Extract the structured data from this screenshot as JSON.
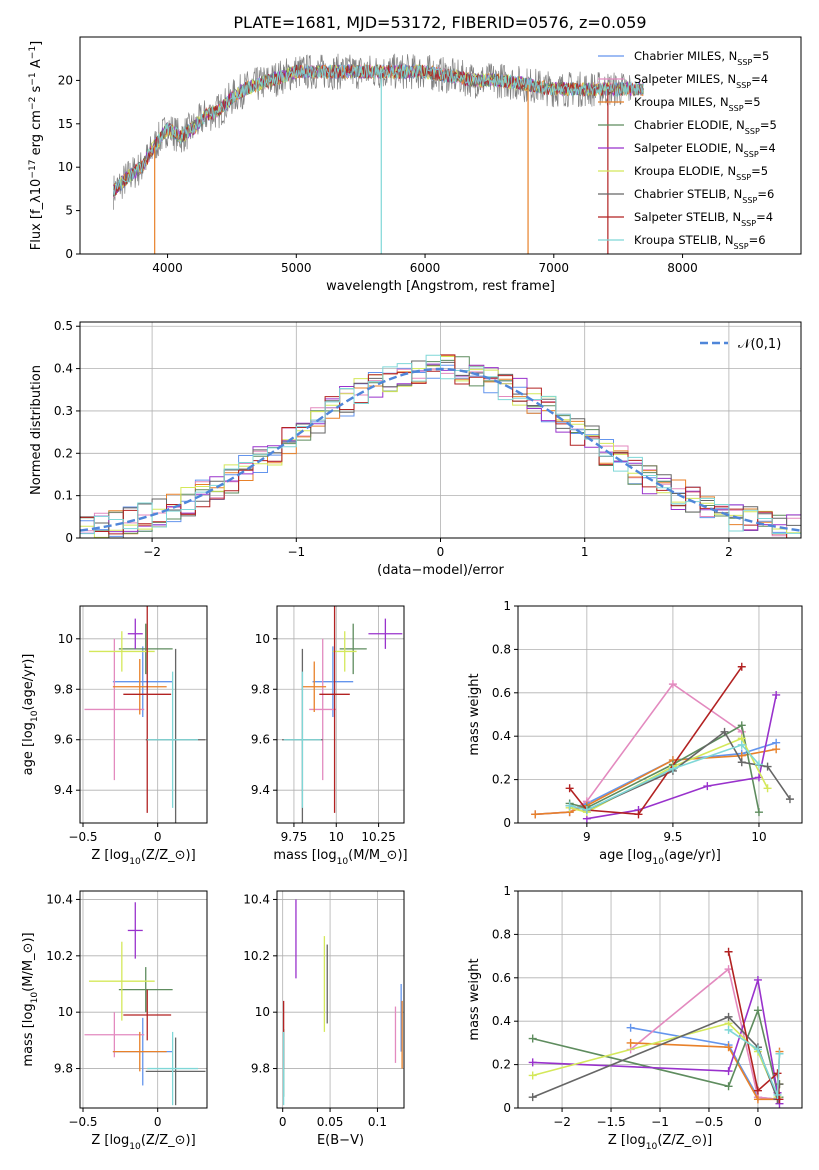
{
  "figure_title": "PLATE=1681, MJD=53172, FIBERID=0576, z=0.059",
  "series_names": [
    "Chabrier MILES, N$_{SSP}$=5",
    "Salpeter MILES, N$_{SSP}$=4",
    "Kroupa MILES, N$_{SSP}$=5",
    "Chabrier ELODIE, N$_{SSP}$=5",
    "Salpeter ELODIE, N$_{SSP}$=4",
    "Kroupa ELODIE, N$_{SSP}$=5",
    "Chabrier STELIB, N$_{SSP}$=6",
    "Salpeter STELIB, N$_{SSP}$=4",
    "Kroupa STELIB, N$_{SSP}$=6"
  ],
  "series_colors": [
    "#6495ED",
    "#E38ABF",
    "#E8812A",
    "#5E8C5E",
    "#9932CC",
    "#D4E85A",
    "#666666",
    "#B22222",
    "#7FD7D7"
  ],
  "chart_data": [
    {
      "type": "line",
      "panel": "spectrum",
      "xlabel": "wavelength [Angstrom, rest frame]",
      "ylabel": "Flux [f$_\\lambda$10$^{-17}$ erg cm$^{-2}$ s$^{-1}$ A$^{-1}$]",
      "xlim": [
        3320,
        8920
      ],
      "ylim": [
        0,
        25
      ],
      "xticks": [
        4000,
        5000,
        6000,
        7000,
        8000
      ],
      "yticks": [
        0,
        5,
        10,
        15,
        20
      ],
      "legend": "top-right",
      "spectrum_x": [
        3600,
        3700,
        3800,
        3900,
        4000,
        4100,
        4200,
        4300,
        4400,
        4500,
        4600,
        4700,
        4800,
        4900,
        5000,
        5200,
        5400,
        5600,
        5800,
        6000,
        6200,
        6400,
        6600,
        6800,
        7000,
        7200,
        7400,
        7600
      ],
      "spectrum_y": [
        7.5,
        9,
        10,
        12.5,
        14.5,
        13.5,
        14.5,
        16,
        16.5,
        18,
        19,
        19.5,
        20,
        20.5,
        21,
        21,
        21,
        21,
        21,
        21,
        20.5,
        20,
        20,
        19.5,
        19,
        19,
        19,
        19
      ]
    },
    {
      "type": "line",
      "panel": "residuals",
      "xlabel": "(data-model)/error",
      "ylabel": "Normed distribution",
      "xlim": [
        -2.5,
        2.5
      ],
      "ylim": [
        0,
        0.51
      ],
      "xticks": [
        -2,
        -1,
        0,
        1,
        2
      ],
      "yticks": [
        0.0,
        0.1,
        0.2,
        0.3,
        0.4,
        0.5
      ],
      "grid": true,
      "legend": "top-right",
      "legend_label": "$\\mathcal{N}(0,1)$"
    },
    {
      "type": "scatter",
      "panel": "age-vs-Z",
      "xlabel": "Z [log$_{10}$($Z/Z_\\odot$)]",
      "ylabel": "age  [log$_{10}$($age/yr$)]",
      "xlim": [
        -0.52,
        0.33
      ],
      "ylim": [
        9.27,
        10.13
      ],
      "xticks": [
        -0.5,
        0.0
      ],
      "yticks": [
        9.4,
        9.6,
        9.8,
        10.0
      ],
      "grid": true,
      "points": [
        {
          "x": -0.1,
          "y": 9.83,
          "xerr": 0.2,
          "yerr": 0.14
        },
        {
          "x": -0.29,
          "y": 9.72,
          "xerr": 0.2,
          "yerr": 0.28
        },
        {
          "x": -0.12,
          "y": 9.81,
          "xerr": 0.18,
          "yerr": 0.11
        },
        {
          "x": -0.08,
          "y": 9.96,
          "xerr": 0.18,
          "yerr": 0.1
        },
        {
          "x": -0.15,
          "y": 10.02,
          "xerr": 0.05,
          "yerr": 0.06
        },
        {
          "x": -0.24,
          "y": 9.95,
          "xerr": 0.22,
          "yerr": 0.08
        },
        {
          "x": 0.12,
          "y": 9.6,
          "xerr": 0.2,
          "yerr": 0.36
        },
        {
          "x": -0.07,
          "y": 9.78,
          "xerr": 0.16,
          "yerr": 0.47
        },
        {
          "x": 0.1,
          "y": 9.6,
          "xerr": 0.17,
          "yerr": 0.27
        }
      ]
    },
    {
      "type": "scatter",
      "panel": "age-vs-mass",
      "xlabel": "mass [log$_{10}$($M/M_\\odot$)]",
      "ylabel": "",
      "xlim": [
        9.65,
        10.4
      ],
      "ylim": [
        9.27,
        10.13
      ],
      "xticks": [
        9.75,
        10.0,
        10.25
      ],
      "yticks": [
        9.4,
        9.6,
        9.8,
        10.0
      ],
      "grid": true,
      "points": [
        {
          "x": 9.98,
          "y": 9.83,
          "xerr": 0.12,
          "yerr": 0.14
        },
        {
          "x": 9.92,
          "y": 9.72,
          "xerr": 0.08,
          "yerr": 0.28
        },
        {
          "x": 9.87,
          "y": 9.81,
          "xerr": 0.07,
          "yerr": 0.1
        },
        {
          "x": 10.1,
          "y": 9.96,
          "xerr": 0.08,
          "yerr": 0.1
        },
        {
          "x": 10.29,
          "y": 10.02,
          "xerr": 0.1,
          "yerr": 0.06
        },
        {
          "x": 10.05,
          "y": 9.95,
          "xerr": 0.07,
          "yerr": 0.08
        },
        {
          "x": 9.8,
          "y": 9.6,
          "xerr": 0.12,
          "yerr": 0.36
        },
        {
          "x": 9.99,
          "y": 9.78,
          "xerr": 0.09,
          "yerr": 0.47
        },
        {
          "x": 9.8,
          "y": 9.6,
          "xerr": 0.11,
          "yerr": 0.27
        }
      ]
    },
    {
      "type": "line",
      "panel": "mass-weight-vs-age",
      "xlabel": "age  [log$_{10}$($age/yr$)]",
      "ylabel": "mass weight",
      "xlim": [
        8.6,
        10.25
      ],
      "ylim": [
        0,
        1.0
      ],
      "xticks": [
        9.0,
        9.5,
        10.0
      ],
      "yticks": [
        0.0,
        0.2,
        0.4,
        0.6,
        0.8,
        1.0
      ],
      "grid": true,
      "series": [
        {
          "x": [
            8.7,
            8.9,
            9.0,
            9.5,
            9.9,
            10.1
          ],
          "values": [
            0.04,
            0.05,
            0.09,
            0.29,
            0.32,
            0.37
          ]
        },
        {
          "x": [
            8.7,
            8.9,
            9.0,
            9.5,
            9.9
          ],
          "values": [
            0.04,
            0.05,
            0.1,
            0.64,
            0.42
          ]
        },
        {
          "x": [
            8.7,
            8.9,
            9.0,
            9.5,
            9.9,
            10.1
          ],
          "values": [
            0.04,
            0.05,
            0.08,
            0.29,
            0.31,
            0.34
          ]
        },
        {
          "x": [
            8.9,
            9.0,
            9.5,
            9.9,
            10.0
          ],
          "values": [
            0.09,
            0.07,
            0.27,
            0.45,
            0.05
          ]
        },
        {
          "x": [
            9.0,
            9.3,
            9.7,
            10.0,
            10.1
          ],
          "values": [
            0.02,
            0.06,
            0.17,
            0.21,
            0.59
          ]
        },
        {
          "x": [
            8.9,
            9.0,
            9.5,
            9.9,
            10.05
          ],
          "values": [
            0.07,
            0.05,
            0.26,
            0.39,
            0.16
          ]
        },
        {
          "x": [
            8.9,
            9.0,
            9.5,
            9.8,
            9.9,
            10.05,
            10.18
          ],
          "values": [
            0.08,
            0.06,
            0.24,
            0.42,
            0.28,
            0.26,
            0.11
          ]
        },
        {
          "x": [
            8.9,
            9.0,
            9.3,
            9.9
          ],
          "values": [
            0.16,
            0.06,
            0.04,
            0.72
          ]
        },
        {
          "x": [
            8.9,
            9.0,
            9.5,
            9.9,
            10.0
          ],
          "values": [
            0.08,
            0.06,
            0.25,
            0.36,
            0.27
          ]
        }
      ]
    },
    {
      "type": "scatter",
      "panel": "mass-vs-Z",
      "xlabel": "Z [log$_{10}$($Z/Z_\\odot$)]",
      "ylabel": "mass [log$_{10}$($M/M_\\odot$)]",
      "xlim": [
        -0.52,
        0.33
      ],
      "ylim": [
        9.66,
        10.43
      ],
      "xticks": [
        -0.5,
        0.0
      ],
      "yticks": [
        9.8,
        10.0,
        10.2,
        10.4
      ],
      "grid": true,
      "points": [
        {
          "x": -0.1,
          "y": 9.86,
          "xerr": 0.2,
          "yerr": 0.12
        },
        {
          "x": -0.29,
          "y": 9.92,
          "xerr": 0.2,
          "yerr": 0.08
        },
        {
          "x": -0.12,
          "y": 9.86,
          "xerr": 0.18,
          "yerr": 0.07
        },
        {
          "x": -0.08,
          "y": 10.08,
          "xerr": 0.18,
          "yerr": 0.08
        },
        {
          "x": -0.15,
          "y": 10.29,
          "xerr": 0.05,
          "yerr": 0.1
        },
        {
          "x": -0.24,
          "y": 10.11,
          "xerr": 0.22,
          "yerr": 0.14
        },
        {
          "x": 0.12,
          "y": 9.79,
          "xerr": 0.2,
          "yerr": 0.12
        },
        {
          "x": -0.07,
          "y": 9.99,
          "xerr": 0.16,
          "yerr": 0.09
        },
        {
          "x": 0.1,
          "y": 9.8,
          "xerr": 0.17,
          "yerr": 0.13
        }
      ]
    },
    {
      "type": "scatter",
      "panel": "mass-vs-ebv",
      "xlabel": "E(B-V)",
      "ylabel": "",
      "xlim": [
        -0.006,
        0.128
      ],
      "ylim": [
        9.66,
        10.43
      ],
      "xticks": [
        0.0,
        0.05,
        0.1
      ],
      "yticks": [
        9.8,
        10.0,
        10.2,
        10.4
      ],
      "grid": true,
      "points": [
        {
          "x": 0.125,
          "y": 9.98,
          "xerr": 0,
          "yerr": 0.12
        },
        {
          "x": 0.119,
          "y": 9.92,
          "xerr": 0,
          "yerr": 0.1
        },
        {
          "x": 0.126,
          "y": 9.92,
          "xerr": 0,
          "yerr": 0.12
        },
        {
          "x": 0.001,
          "y": 9.82,
          "xerr": 0,
          "yerr": 0.12
        },
        {
          "x": 0.014,
          "y": 10.26,
          "xerr": 0,
          "yerr": 0.14
        },
        {
          "x": 0.044,
          "y": 10.1,
          "xerr": 0,
          "yerr": 0.17
        },
        {
          "x": 0.047,
          "y": 10.1,
          "xerr": 0,
          "yerr": 0.14
        },
        {
          "x": 0.001,
          "y": 9.92,
          "xerr": 0,
          "yerr": 0.12
        },
        {
          "x": 0.001,
          "y": 9.8,
          "xerr": 0,
          "yerr": 0.13
        }
      ]
    },
    {
      "type": "line",
      "panel": "mass-weight-vs-Z",
      "xlabel": "Z [log$_{10}$($Z/Z_\\odot$)]",
      "ylabel": "mass weight",
      "xlim": [
        -2.45,
        0.45
      ],
      "ylim": [
        0,
        1.0
      ],
      "xticks": [
        -2.0,
        -1.5,
        -1.0,
        -0.5,
        0.0
      ],
      "yticks": [
        0.0,
        0.2,
        0.4,
        0.6,
        0.8,
        1.0
      ],
      "grid": true,
      "series": [
        {
          "x": [
            -1.3,
            -0.3,
            0.0,
            0.2
          ],
          "values": [
            0.37,
            0.29,
            0.05,
            0.04
          ]
        },
        {
          "x": [
            -1.3,
            -0.3,
            0.0,
            0.2
          ],
          "values": [
            0.27,
            0.64,
            0.05,
            0.04
          ]
        },
        {
          "x": [
            -1.3,
            -0.3,
            0.0,
            0.2,
            0.22
          ],
          "values": [
            0.3,
            0.28,
            0.04,
            0.04,
            0.26
          ]
        },
        {
          "x": [
            -2.3,
            -0.3,
            0.0,
            0.2,
            0.22
          ],
          "values": [
            0.32,
            0.1,
            0.45,
            0.07,
            0.05
          ]
        },
        {
          "x": [
            -2.3,
            -0.3,
            0.0,
            0.2,
            0.22
          ],
          "values": [
            0.21,
            0.17,
            0.59,
            0.07,
            0.02
          ]
        },
        {
          "x": [
            -2.3,
            -0.3,
            0.0,
            0.2,
            0.22
          ],
          "values": [
            0.15,
            0.39,
            0.26,
            0.05,
            0.11
          ]
        },
        {
          "x": [
            -2.3,
            -0.3,
            0.0,
            0.2,
            0.22
          ],
          "values": [
            0.05,
            0.42,
            0.28,
            0.04,
            0.11
          ]
        },
        {
          "x": [
            -0.3,
            0.0,
            0.2,
            0.22
          ],
          "values": [
            0.72,
            0.08,
            0.16,
            0.04
          ]
        },
        {
          "x": [
            -0.3,
            0.0,
            0.2,
            0.22
          ],
          "values": [
            0.36,
            0.27,
            0.06,
            0.25
          ]
        }
      ]
    }
  ]
}
